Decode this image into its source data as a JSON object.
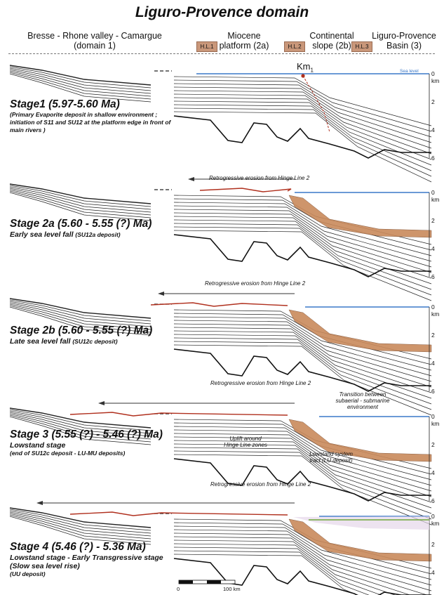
{
  "title": "Liguro-Provence domain",
  "header": {
    "col1": [
      "Bresse - Rhone  valley - Camargue",
      "(domain 1)"
    ],
    "col2": [
      "Miocene",
      "platform (2a)"
    ],
    "col3": [
      "Continental",
      "slope (2b)"
    ],
    "col4": [
      "Liguro-Provence",
      "Basin (3)"
    ],
    "hinge_lines": [
      "H.L.1",
      "H.L.2",
      "H.L.3"
    ]
  },
  "stages": [
    {
      "title": "Stage1 (5.97-5.60 Ma)",
      "subtitle": "(Primary Evaporite deposit in shallow environment ; initiation of S11 and SU12 at the platform edge in front of main rivers )",
      "note": ""
    },
    {
      "title": "Stage 2a (5.60 - 5.55 (?) Ma)",
      "subtitle": "Early sea level fall",
      "note": "(SU12a deposit)"
    },
    {
      "title": "Stage 2b (5.60 - 5.55 (?) Ma)",
      "subtitle": "Late sea level fall",
      "note": "(SU12c deposit)"
    },
    {
      "title": "Stage 3 (5.55 (?) - 5.46 (?) Ma)",
      "subtitle": "Lowstand stage",
      "note": "(end of SU12c deposit - LU-MU deposits)"
    },
    {
      "title": "Stage 4 (5.46 (?) - 5.36 Ma)",
      "subtitle": "Lowstand stage - Early Transgressive stage",
      "subtitle2": "(Slow sea level rise)",
      "note": "(UU deposit)"
    }
  ],
  "labels": {
    "km1": "Km",
    "km1_sub": "1",
    "sea_level": "Sea level",
    "erosion": "Retrogressive erosion from Hinge Line 2",
    "transition": [
      "Transition between",
      "subaerial - submarine",
      "environment"
    ],
    "uplift": [
      "Uplift around",
      "Hinge Line zones"
    ],
    "lowstand": [
      "Lowstand system",
      "tract (LU deposit)"
    ]
  },
  "depth_ticks": [
    "0 km",
    "2",
    "4",
    "6"
  ],
  "scale_bar": {
    "left": "0",
    "right": "100 km"
  },
  "colors": {
    "sea": "#3a78c8",
    "erosion": "#b0301e",
    "evaporite": "#c98a5c",
    "green": "#6fa83a",
    "lilac": "#e6d7ea"
  }
}
